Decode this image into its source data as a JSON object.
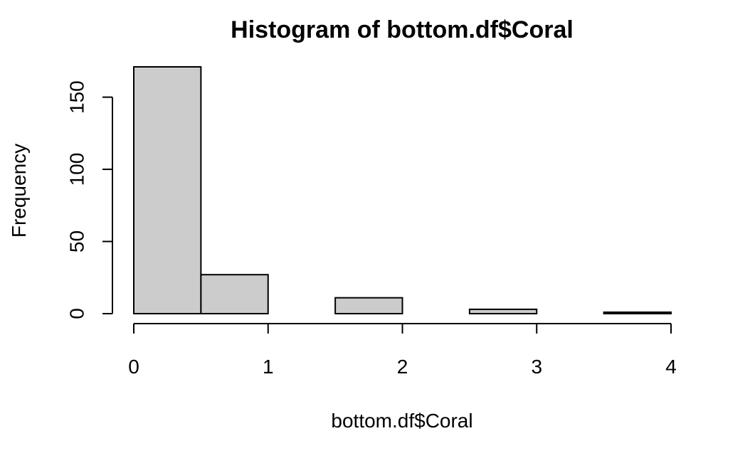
{
  "chart_data": {
    "type": "bar",
    "title": "Histogram of bottom.df$Coral",
    "xlabel": "bottom.df$Coral",
    "ylabel": "Frequency",
    "bins": [
      {
        "from": 0.0,
        "to": 0.5,
        "count": 171
      },
      {
        "from": 0.5,
        "to": 1.0,
        "count": 27
      },
      {
        "from": 1.0,
        "to": 1.5,
        "count": 0
      },
      {
        "from": 1.5,
        "to": 2.0,
        "count": 11
      },
      {
        "from": 2.0,
        "to": 2.5,
        "count": 0
      },
      {
        "from": 2.5,
        "to": 3.0,
        "count": 3
      },
      {
        "from": 3.0,
        "to": 3.5,
        "count": 0
      },
      {
        "from": 3.5,
        "to": 4.0,
        "count": 1
      }
    ],
    "x_ticks": [
      {
        "value": 0,
        "label": "0"
      },
      {
        "value": 1,
        "label": "1"
      },
      {
        "value": 2,
        "label": "2"
      },
      {
        "value": 3,
        "label": "3"
      },
      {
        "value": 4,
        "label": "4"
      }
    ],
    "y_ticks": [
      {
        "value": 0,
        "label": "0"
      },
      {
        "value": 50,
        "label": "50"
      },
      {
        "value": 100,
        "label": "100"
      },
      {
        "value": 150,
        "label": "150"
      }
    ],
    "xlim": [
      0,
      4
    ],
    "ylim": [
      0,
      171
    ],
    "grid": false,
    "bar_fill": "#cccccc",
    "bar_stroke": "#000000"
  }
}
